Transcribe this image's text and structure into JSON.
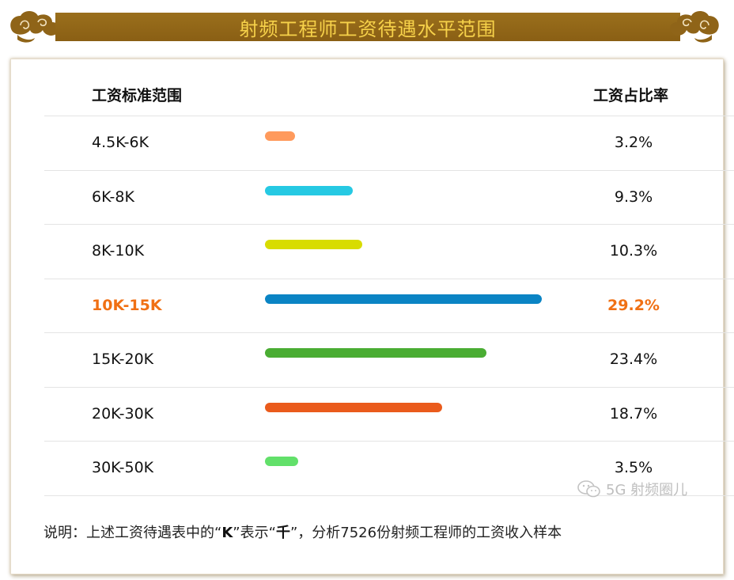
{
  "header": {
    "title": "射频工程师工资待遇水平范围"
  },
  "columns": {
    "range_label": "工资标准范围",
    "ratio_label": "工资占比率"
  },
  "rows": [
    {
      "range": "4.5K-6K",
      "percent": "3.2%",
      "color": "#ff9a5c",
      "highlight": false
    },
    {
      "range": "6K-8K",
      "percent": "9.3%",
      "color": "#26c9e3",
      "highlight": false
    },
    {
      "range": "8K-10K",
      "percent": "10.3%",
      "color": "#d8dc00",
      "highlight": false
    },
    {
      "range": "10K-15K",
      "percent": "29.2%",
      "color": "#0a84c4",
      "highlight": true
    },
    {
      "range": "15K-20K",
      "percent": "23.4%",
      "color": "#4aad33",
      "highlight": false
    },
    {
      "range": "20K-30K",
      "percent": "18.7%",
      "color": "#ea5b1c",
      "highlight": false
    },
    {
      "range": "30K-50K",
      "percent": "3.5%",
      "color": "#62e06a",
      "highlight": false
    }
  ],
  "chart_data": {
    "type": "bar",
    "categories": [
      "4.5K-6K",
      "6K-8K",
      "8K-10K",
      "10K-15K",
      "15K-20K",
      "20K-30K",
      "30K-50K"
    ],
    "values": [
      3.2,
      9.3,
      10.3,
      29.2,
      23.4,
      18.7,
      3.5
    ],
    "title": "射频工程师工资待遇水平范围",
    "xlabel": "工资标准范围",
    "ylabel": "工资占比率",
    "highlight_category": "10K-15K",
    "highlight_color": "#f07014"
  },
  "note": {
    "prefix": "说明：上述工资待遇表中的“",
    "k": "K",
    "mid": "”表示“",
    "qian": "千",
    "suffix": "”，分析7526份射频工程师的工资收入样本"
  },
  "watermark": {
    "text": "5G 射频圈儿",
    "icon": "wechat-icon"
  },
  "colors": {
    "banner": "#8f6418",
    "banner_text": "#f7d24a",
    "highlight": "#f07014"
  }
}
